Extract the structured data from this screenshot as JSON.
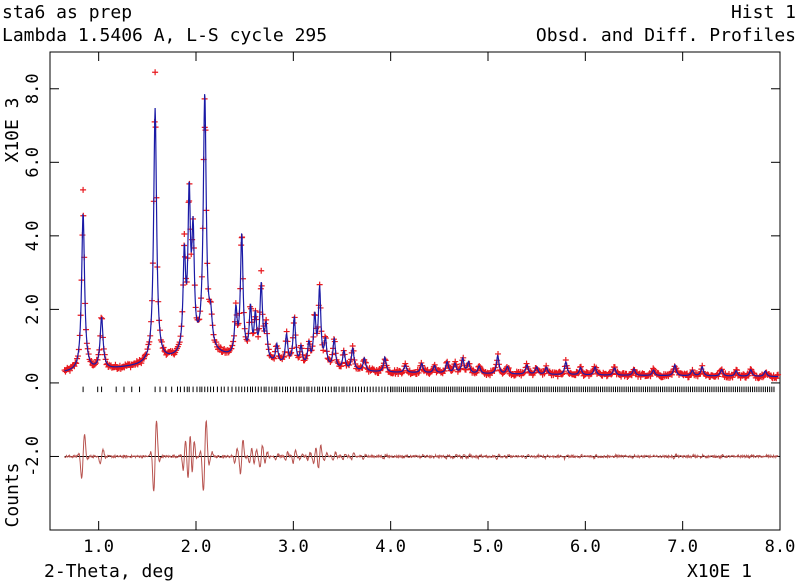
{
  "header": {
    "title": "sta6 as prep",
    "hist": "Hist  1",
    "subtitle": "Lambda 1.5406 A, L-S cycle  295",
    "profile_label": "Obsd. and Diff. Profiles"
  },
  "chart_data": {
    "type": "line",
    "title": "sta6 as prep",
    "xlabel": "2-Theta, deg",
    "x_scale_label": "X10E  1",
    "y_scale_label": "X10E  3",
    "ylabel": "Counts",
    "xlim": [
      0.5,
      8.0
    ],
    "ylim": [
      -4.0,
      9.0
    ],
    "x_ticks": [
      1.0,
      2.0,
      3.0,
      4.0,
      5.0,
      6.0,
      7.0,
      8.0
    ],
    "x_tick_labels": [
      "1.0",
      "2.0",
      "3.0",
      "4.0",
      "5.0",
      "6.0",
      "7.0",
      "8.0"
    ],
    "y_ticks": [
      8.0,
      6.0,
      4.0,
      2.0,
      0.0,
      -2.0
    ],
    "y_tick_labels": [
      "8.0",
      "6.0",
      "4.0",
      "2.0",
      ".0",
      "-2.0"
    ],
    "colors": {
      "observed": "#e8191f",
      "calculated": "#1a1aa6",
      "difference": "#b85450",
      "reflections": "#000000",
      "baseline": "#000000"
    },
    "x_start": 0.65,
    "x_end": 7.98,
    "difference_offset": -2.0,
    "background": [
      [
        0.65,
        0.28
      ],
      [
        1.0,
        0.33
      ],
      [
        1.4,
        0.45
      ],
      [
        1.8,
        0.65
      ],
      [
        2.05,
        0.82
      ],
      [
        2.3,
        0.7
      ],
      [
        2.6,
        0.55
      ],
      [
        3.0,
        0.42
      ],
      [
        3.5,
        0.33
      ],
      [
        4.0,
        0.28
      ],
      [
        5.0,
        0.24
      ],
      [
        6.0,
        0.21
      ],
      [
        7.0,
        0.19
      ],
      [
        7.98,
        0.17
      ]
    ],
    "peaks": [
      [
        0.84,
        4.3,
        0.018
      ],
      [
        1.03,
        1.4,
        0.018
      ],
      [
        1.58,
        6.9,
        0.018
      ],
      [
        1.88,
        2.6,
        0.015
      ],
      [
        1.93,
        4.1,
        0.015
      ],
      [
        1.97,
        3.0,
        0.015
      ],
      [
        2.09,
        6.9,
        0.018
      ],
      [
        2.15,
        0.8,
        0.02
      ],
      [
        2.41,
        1.2,
        0.015
      ],
      [
        2.47,
        3.3,
        0.016
      ],
      [
        2.56,
        1.3,
        0.015
      ],
      [
        2.61,
        1.1,
        0.015
      ],
      [
        2.67,
        2.0,
        0.016
      ],
      [
        2.72,
        0.9,
        0.015
      ],
      [
        2.83,
        0.5,
        0.015
      ],
      [
        2.93,
        0.8,
        0.015
      ],
      [
        3.01,
        1.3,
        0.015
      ],
      [
        3.08,
        0.5,
        0.015
      ],
      [
        3.16,
        0.6,
        0.015
      ],
      [
        3.22,
        1.3,
        0.015
      ],
      [
        3.27,
        2.1,
        0.015
      ],
      [
        3.33,
        0.7,
        0.015
      ],
      [
        3.42,
        0.8,
        0.015
      ],
      [
        3.52,
        0.5,
        0.015
      ],
      [
        3.61,
        0.6,
        0.015
      ],
      [
        3.73,
        0.35,
        0.015
      ],
      [
        3.94,
        0.4,
        0.015
      ],
      [
        4.15,
        0.2,
        0.015
      ],
      [
        4.32,
        0.25,
        0.015
      ],
      [
        4.45,
        0.2,
        0.015
      ],
      [
        4.58,
        0.3,
        0.015
      ],
      [
        4.66,
        0.25,
        0.015
      ],
      [
        4.74,
        0.4,
        0.015
      ],
      [
        4.8,
        0.3,
        0.015
      ],
      [
        4.91,
        0.2,
        0.015
      ],
      [
        5.1,
        0.5,
        0.015
      ],
      [
        5.2,
        0.2,
        0.015
      ],
      [
        5.4,
        0.25,
        0.015
      ],
      [
        5.5,
        0.2,
        0.015
      ],
      [
        5.6,
        0.2,
        0.015
      ],
      [
        5.8,
        0.35,
        0.015
      ],
      [
        5.95,
        0.2,
        0.015
      ],
      [
        6.1,
        0.22,
        0.015
      ],
      [
        6.3,
        0.2,
        0.015
      ],
      [
        6.5,
        0.18,
        0.015
      ],
      [
        6.7,
        0.15,
        0.015
      ],
      [
        6.92,
        0.3,
        0.015
      ],
      [
        7.1,
        0.15,
        0.015
      ],
      [
        7.2,
        0.25,
        0.015
      ],
      [
        7.4,
        0.18,
        0.015
      ],
      [
        7.55,
        0.15,
        0.015
      ],
      [
        7.7,
        0.18,
        0.015
      ],
      [
        7.85,
        0.15,
        0.015
      ]
    ],
    "observed_outliers": [
      [
        0.84,
        5.25
      ],
      [
        1.58,
        8.45
      ],
      [
        1.93,
        4.95
      ],
      [
        2.09,
        6.95
      ],
      [
        2.47,
        3.95
      ],
      [
        2.67,
        3.05
      ],
      [
        1.88,
        4.05
      ],
      [
        2.61,
        1.8
      ]
    ],
    "reflection_positions": [
      0.84,
      0.99,
      1.03,
      1.18,
      1.26,
      1.34,
      1.42,
      1.58,
      1.63,
      1.69,
      1.75,
      1.81,
      1.84,
      1.88,
      1.91,
      1.93,
      1.97,
      2.01,
      2.04,
      2.06,
      2.09,
      2.12,
      2.15,
      2.18,
      2.22,
      2.26,
      2.29,
      2.33,
      2.37,
      2.41,
      2.44,
      2.47,
      2.5,
      2.53,
      2.56,
      2.58,
      2.61,
      2.64,
      2.67,
      2.7,
      2.72,
      2.75,
      2.78,
      2.81,
      2.83,
      2.86,
      2.89,
      2.92,
      2.94,
      2.97,
      3.0,
      3.03,
      3.06,
      3.08,
      3.11,
      3.14,
      3.16,
      3.19,
      3.22,
      3.25,
      3.27,
      3.3,
      3.33,
      3.36,
      3.39,
      3.42,
      3.44,
      3.47,
      3.5,
      3.52,
      3.55,
      3.58,
      3.61,
      3.64,
      3.67,
      3.7,
      3.73,
      3.76,
      3.79,
      3.82,
      3.85,
      3.88,
      3.91,
      3.94,
      3.97,
      4.0
    ],
    "dense_reflections_range": [
      4.0,
      7.95
    ],
    "dense_reflections_step": 0.022
  }
}
